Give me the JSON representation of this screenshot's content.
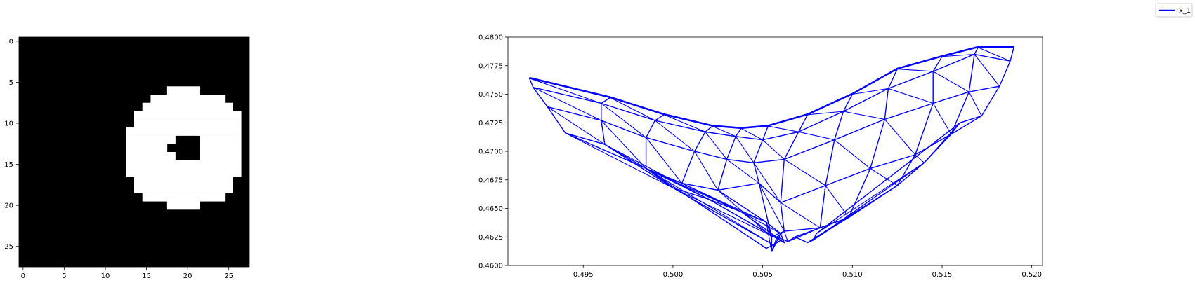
{
  "legend": {
    "label": "x_1",
    "color": "#0000ff",
    "placement": "top-right"
  },
  "chart_data": [
    {
      "type": "heatmap",
      "colormap": "gray",
      "rows": 28,
      "cols": 28,
      "xticks": [
        "0",
        "5",
        "10",
        "15",
        "20",
        "25"
      ],
      "yticks": [
        "0",
        "5",
        "10",
        "15",
        "20",
        "25"
      ],
      "white_runs": [
        [
          6,
          18,
          21
        ],
        [
          7,
          16,
          24
        ],
        [
          8,
          15,
          25
        ],
        [
          9,
          14,
          26
        ],
        [
          10,
          14,
          26
        ],
        [
          11,
          13,
          26
        ],
        [
          12,
          13,
          26
        ],
        [
          13,
          13,
          26
        ],
        [
          14,
          13,
          26
        ],
        [
          15,
          13,
          26
        ],
        [
          16,
          13,
          26
        ],
        [
          17,
          14,
          25
        ],
        [
          18,
          14,
          25
        ],
        [
          19,
          15,
          24
        ],
        [
          20,
          18,
          21
        ]
      ],
      "white_runs_note_cols_are_inclusive": true,
      "holes": [
        [
          12,
          19,
          21
        ],
        [
          13,
          18,
          21
        ],
        [
          14,
          19,
          21
        ]
      ]
    },
    {
      "type": "line",
      "series": [
        {
          "name": "x_1",
          "color": "#0000ff",
          "grid": [
            [
              [
                0.492,
                0.4764
              ],
              [
                0.4965,
                0.4747
              ],
              [
                0.4995,
                0.4732
              ],
              [
                0.5022,
                0.4722
              ],
              [
                0.5038,
                0.472
              ],
              [
                0.5053,
                0.4722
              ],
              [
                0.5075,
                0.4732
              ],
              [
                0.51,
                0.475
              ],
              [
                0.5125,
                0.4772
              ],
              [
                0.515,
                0.4783
              ],
              [
                0.517,
                0.4791
              ],
              [
                0.519,
                0.4791
              ]
            ],
            [
              [
                0.4922,
                0.4756
              ],
              [
                0.496,
                0.4742
              ],
              [
                0.499,
                0.4727
              ],
              [
                0.5018,
                0.4717
              ],
              [
                0.5035,
                0.4713
              ],
              [
                0.505,
                0.471
              ],
              [
                0.507,
                0.4717
              ],
              [
                0.5095,
                0.4735
              ],
              [
                0.512,
                0.4755
              ],
              [
                0.5145,
                0.477
              ],
              [
                0.5168,
                0.4785
              ],
              [
                0.5188,
                0.4779
              ]
            ],
            [
              [
                0.493,
                0.4739
              ],
              [
                0.496,
                0.4727
              ],
              [
                0.4985,
                0.4712
              ],
              [
                0.5012,
                0.47
              ],
              [
                0.503,
                0.4693
              ],
              [
                0.5045,
                0.469
              ],
              [
                0.5062,
                0.4693
              ],
              [
                0.509,
                0.471
              ],
              [
                0.5118,
                0.4728
              ],
              [
                0.5145,
                0.4742
              ],
              [
                0.5165,
                0.4752
              ],
              [
                0.5182,
                0.4757
              ]
            ],
            [
              [
                0.494,
                0.4716
              ],
              [
                0.4962,
                0.4706
              ],
              [
                0.4985,
                0.4685
              ],
              [
                0.5005,
                0.4672
              ],
              [
                0.5025,
                0.4666
              ],
              [
                0.5048,
                0.4672
              ],
              [
                0.506,
                0.4655
              ],
              [
                0.5085,
                0.467
              ],
              [
                0.511,
                0.4685
              ],
              [
                0.5135,
                0.4697
              ],
              [
                0.5155,
                0.4715
              ],
              [
                0.5172,
                0.4731
              ]
            ],
            [
              [
                0.4985,
                0.4685
              ],
              [
                0.5,
                0.4668
              ],
              [
                0.502,
                0.4658
              ],
              [
                0.5038,
                0.4647
              ],
              [
                0.5052,
                0.4638
              ],
              [
                0.5055,
                0.4625
              ],
              [
                0.5062,
                0.463
              ],
              [
                0.5082,
                0.4633
              ],
              [
                0.5098,
                0.4642
              ],
              [
                0.5125,
                0.467
              ],
              [
                0.514,
                0.469
              ],
              [
                0.516,
                0.4725
              ]
            ],
            [
              [
                0.5052,
                0.4615
              ],
              [
                0.5056,
                0.4618
              ],
              [
                0.506,
                0.4622
              ],
              [
                0.5062,
                0.462
              ],
              [
                0.506,
                0.4628
              ],
              [
                0.5055,
                0.4612
              ],
              [
                0.5058,
                0.4625
              ],
              [
                0.5064,
                0.4621
              ],
              [
                0.5068,
                0.4625
              ],
              [
                0.5075,
                0.462
              ],
              [
                0.5078,
                0.4622
              ],
              [
                0.508,
                0.4628
              ]
            ]
          ]
        }
      ],
      "xlim": [
        0.4908,
        0.5206
      ],
      "ylim": [
        0.46,
        0.48
      ],
      "xticks": [
        0.495,
        0.5,
        0.505,
        0.51,
        0.515,
        0.52
      ],
      "xtick_labels": [
        "0.495",
        "0.500",
        "0.505",
        "0.510",
        "0.515",
        "0.520"
      ],
      "yticks": [
        0.46,
        0.4625,
        0.465,
        0.4675,
        0.47,
        0.4725,
        0.475,
        0.4775,
        0.48
      ],
      "ytick_labels": [
        "0.4600",
        "0.4625",
        "0.4650",
        "0.4675",
        "0.4700",
        "0.4725",
        "0.4750",
        "0.4775",
        "0.4800"
      ],
      "grid": false
    }
  ]
}
